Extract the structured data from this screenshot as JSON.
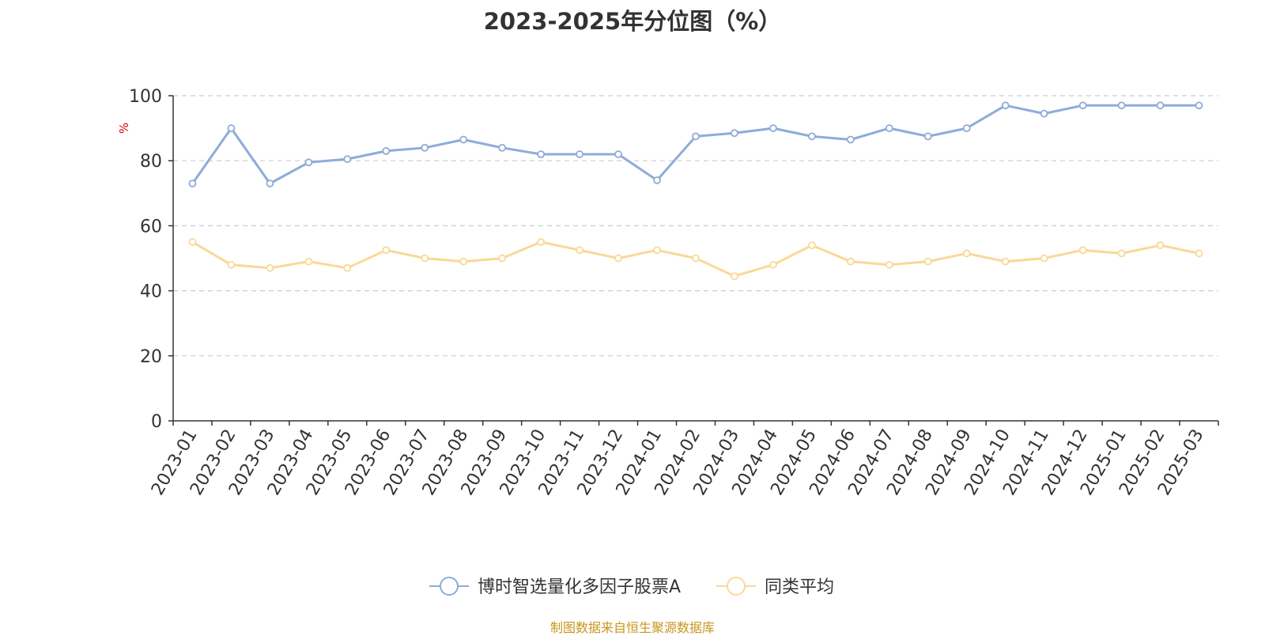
{
  "title": "2023-2025年分位图（%）",
  "source": "制图数据来自恒生聚源数据库",
  "chart_data": {
    "type": "line",
    "ylabel": "%",
    "ylim": [
      0,
      100
    ],
    "yticks": [
      0,
      20,
      40,
      60,
      80,
      100
    ],
    "grid": true,
    "legend_position": "bottom",
    "categories": [
      "2023-01",
      "2023-02",
      "2023-03",
      "2023-04",
      "2023-05",
      "2023-06",
      "2023-07",
      "2023-08",
      "2023-09",
      "2023-10",
      "2023-11",
      "2023-12",
      "2024-01",
      "2024-02",
      "2024-03",
      "2024-04",
      "2024-05",
      "2024-06",
      "2024-07",
      "2024-08",
      "2024-09",
      "2024-10",
      "2024-11",
      "2024-12",
      "2025-01",
      "2025-02",
      "2025-03"
    ],
    "series": [
      {
        "name": "博时智选量化多因子股票A",
        "color": "#8eacd8",
        "values": [
          73,
          90,
          73,
          79.5,
          80.5,
          83,
          84,
          86.5,
          84,
          82,
          82,
          82,
          74,
          87.5,
          88.5,
          90,
          87.5,
          86.5,
          90,
          87.5,
          90,
          97,
          94.5,
          97,
          97,
          97,
          97
        ]
      },
      {
        "name": "同类平均",
        "color": "#fad897",
        "values": [
          55,
          48,
          47,
          49,
          47,
          52.5,
          50,
          49,
          50,
          55,
          52.5,
          50,
          52.5,
          50,
          44.5,
          48,
          54,
          49,
          48,
          49,
          51.5,
          49,
          50,
          52.5,
          51.5,
          54,
          51.5
        ]
      }
    ]
  }
}
